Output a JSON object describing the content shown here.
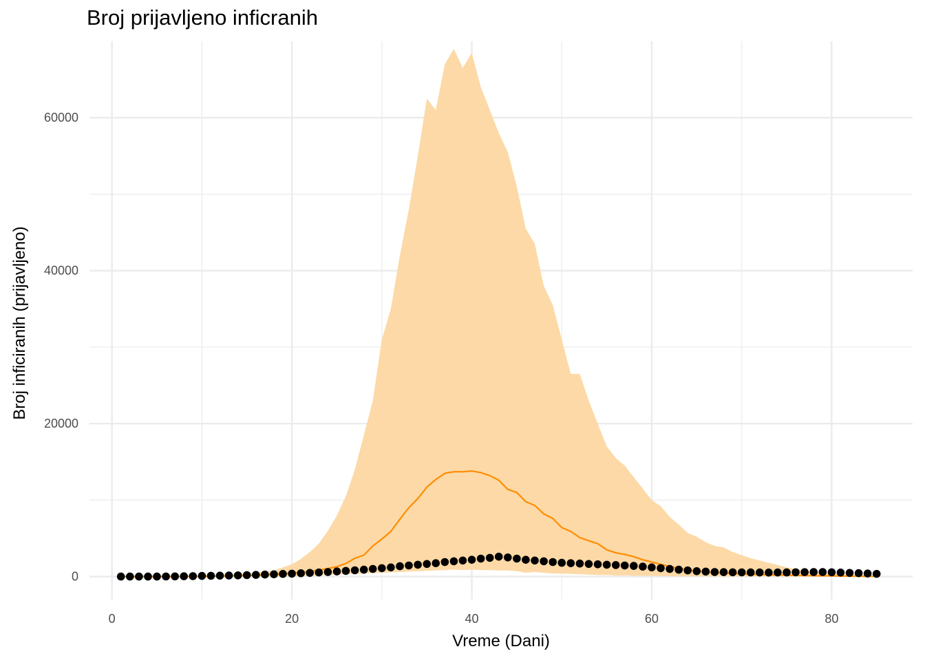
{
  "chart_data": {
    "type": "area",
    "title": "Broj prijavljeno inficranih",
    "xlabel": "Vreme (Dani)",
    "ylabel": "Broj inficiranih (prijavljeno)",
    "xlim": [
      -2.5,
      89
    ],
    "ylim": [
      -3000,
      70000
    ],
    "x_ticks": [
      0,
      20,
      40,
      60,
      80
    ],
    "y_ticks": [
      0,
      20000,
      40000,
      60000
    ],
    "grid": true,
    "legend": "none",
    "colors": {
      "band": "#fcd9a6",
      "median": "#ff8c00",
      "observed": "#000000",
      "grid": "#ebebeb"
    },
    "series": [
      {
        "kind": "ribbon",
        "x": [
          1,
          2,
          3,
          4,
          5,
          6,
          7,
          8,
          9,
          10,
          11,
          12,
          13,
          14,
          15,
          16,
          17,
          18,
          19,
          20,
          21,
          22,
          23,
          24,
          25,
          26,
          27,
          28,
          29,
          30,
          31,
          32,
          33,
          34,
          35,
          36,
          37,
          38,
          39,
          40,
          41,
          42,
          43,
          44,
          45,
          46,
          47,
          48,
          49,
          50,
          51,
          52,
          53,
          54,
          55,
          56,
          57,
          58,
          59,
          60,
          61,
          62,
          63,
          64,
          65,
          66,
          67,
          68,
          69,
          70,
          71,
          72,
          73,
          74,
          75,
          76,
          77,
          78,
          79,
          80,
          81,
          82,
          83,
          84,
          85
        ],
        "lower": [
          0,
          0,
          0,
          0,
          0,
          0,
          0,
          0,
          0,
          0,
          0,
          0,
          0,
          0,
          0,
          0,
          0,
          0,
          0,
          0,
          50,
          100,
          150,
          200,
          250,
          300,
          350,
          400,
          450,
          500,
          550,
          600,
          650,
          700,
          750,
          800,
          850,
          900,
          850,
          900,
          850,
          850,
          800,
          800,
          700,
          500,
          600,
          500,
          400,
          400,
          350,
          300,
          250,
          200,
          200,
          150,
          150,
          100,
          100,
          100,
          80,
          60,
          50,
          40,
          30,
          20,
          20,
          10,
          10,
          10,
          10,
          10,
          10,
          10,
          10,
          10,
          10,
          10,
          10,
          10,
          10,
          10,
          10,
          10,
          10
        ],
        "upper": [
          0,
          0,
          0,
          0,
          0,
          0,
          0,
          50,
          80,
          120,
          150,
          200,
          250,
          300,
          400,
          500,
          600,
          800,
          1200,
          1600,
          2300,
          3200,
          4300,
          6000,
          8000,
          10500,
          14000,
          18500,
          23000,
          31000,
          35000,
          42000,
          48000,
          55000,
          62500,
          61000,
          67000,
          69000,
          66500,
          68500,
          64000,
          61000,
          58000,
          55500,
          51000,
          45500,
          43500,
          38000,
          35500,
          31000,
          26500,
          26500,
          23000,
          20000,
          17000,
          15500,
          14500,
          13000,
          11500,
          10000,
          9200,
          7800,
          6800,
          5700,
          5200,
          4500,
          4000,
          3800,
          3200,
          2800,
          2400,
          2100,
          1800,
          1500,
          1200,
          1000,
          800,
          600,
          500,
          400,
          300,
          200,
          150,
          100,
          50
        ]
      },
      {
        "kind": "line",
        "x": [
          1,
          2,
          3,
          4,
          5,
          6,
          7,
          8,
          9,
          10,
          11,
          12,
          13,
          14,
          15,
          16,
          17,
          18,
          19,
          20,
          21,
          22,
          23,
          24,
          25,
          26,
          27,
          28,
          29,
          30,
          31,
          32,
          33,
          34,
          35,
          36,
          37,
          38,
          39,
          40,
          41,
          42,
          43,
          44,
          45,
          46,
          47,
          48,
          49,
          50,
          51,
          52,
          53,
          54,
          55,
          56,
          57,
          58,
          59,
          60,
          61,
          62,
          63,
          64,
          65,
          66,
          67,
          68,
          69,
          70,
          71,
          72,
          73,
          74,
          75,
          76,
          77,
          78,
          79,
          80,
          81,
          82,
          83,
          84,
          85
        ],
        "values": [
          0,
          0,
          0,
          0,
          0,
          0,
          0,
          0,
          10,
          20,
          40,
          60,
          80,
          100,
          130,
          170,
          220,
          280,
          360,
          450,
          550,
          680,
          850,
          1050,
          1300,
          1700,
          2400,
          2800,
          4000,
          4900,
          5900,
          7500,
          9000,
          10200,
          11700,
          12700,
          13500,
          13700,
          13700,
          13800,
          13600,
          13200,
          12600,
          11400,
          11000,
          9800,
          9300,
          8200,
          7600,
          6400,
          5900,
          5100,
          4700,
          4300,
          3500,
          3100,
          2900,
          2600,
          2200,
          1900,
          1600,
          1300,
          1100,
          900,
          700,
          600,
          500,
          450,
          400,
          350,
          300,
          250,
          220,
          200,
          180,
          150,
          130,
          110,
          100,
          80,
          70,
          60,
          50,
          40,
          30
        ]
      },
      {
        "kind": "points",
        "x": [
          1,
          2,
          3,
          4,
          5,
          6,
          7,
          8,
          9,
          10,
          11,
          12,
          13,
          14,
          15,
          16,
          17,
          18,
          19,
          20,
          21,
          22,
          23,
          24,
          25,
          26,
          27,
          28,
          29,
          30,
          31,
          32,
          33,
          34,
          35,
          36,
          37,
          38,
          39,
          40,
          41,
          42,
          43,
          44,
          45,
          46,
          47,
          48,
          49,
          50,
          51,
          52,
          53,
          54,
          55,
          56,
          57,
          58,
          59,
          60,
          61,
          62,
          63,
          64,
          65,
          66,
          67,
          68,
          69,
          70,
          71,
          72,
          73,
          74,
          75,
          76,
          77,
          78,
          79,
          80,
          81,
          82,
          83,
          84,
          85
        ],
        "values": [
          0,
          0,
          0,
          0,
          0,
          10,
          20,
          40,
          60,
          80,
          100,
          120,
          140,
          160,
          190,
          220,
          260,
          300,
          340,
          380,
          430,
          480,
          530,
          600,
          670,
          740,
          820,
          900,
          1000,
          1100,
          1200,
          1350,
          1450,
          1550,
          1650,
          1750,
          1900,
          2000,
          2100,
          2200,
          2350,
          2450,
          2600,
          2500,
          2350,
          2200,
          2100,
          2000,
          1900,
          1800,
          1750,
          1700,
          1650,
          1600,
          1550,
          1500,
          1450,
          1400,
          1300,
          1200,
          1100,
          1000,
          900,
          800,
          700,
          650,
          600,
          580,
          560,
          550,
          540,
          530,
          520,
          530,
          540,
          560,
          580,
          600,
          600,
          560,
          520,
          480,
          440,
          400,
          350
        ]
      }
    ]
  }
}
